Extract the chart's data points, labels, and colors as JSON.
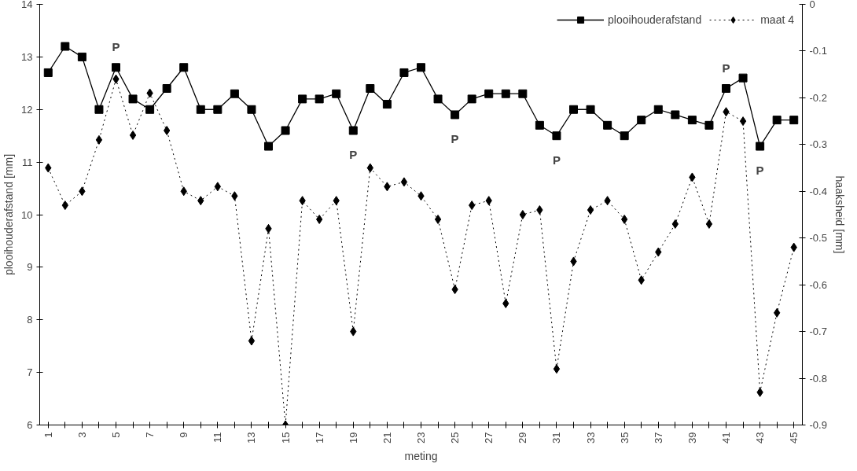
{
  "chart_data": {
    "type": "line",
    "xlabel": "meting",
    "ylabel": "plooihouderafstand [mm]",
    "y2label": "haaksheid [mm]",
    "categories": [
      "1",
      null,
      "3",
      null,
      "5",
      null,
      "7",
      null,
      "9",
      null,
      "11",
      null,
      "13",
      null,
      "15",
      null,
      "17",
      null,
      "19",
      null,
      "21",
      null,
      "23",
      null,
      "25",
      null,
      "27",
      null,
      "29",
      null,
      "31",
      null,
      "33",
      null,
      "35",
      null,
      "37",
      null,
      "39",
      null,
      "41",
      null,
      "43",
      null,
      "45"
    ],
    "series": [
      {
        "name": "plooihouderafstand",
        "color": "#000000",
        "marker": "square",
        "line_style": "solid",
        "values": [
          12.7,
          13.2,
          13.0,
          12.0,
          12.8,
          12.2,
          12.0,
          12.4,
          12.8,
          12.0,
          12.0,
          12.3,
          12.0,
          11.3,
          11.6,
          12.2,
          12.2,
          12.3,
          11.6,
          12.4,
          12.1,
          12.7,
          12.8,
          12.2,
          11.9,
          12.2,
          12.3,
          12.3,
          12.3,
          11.7,
          11.5,
          12.0,
          12.0,
          11.7,
          11.5,
          11.8,
          12.0,
          11.9,
          11.8,
          11.7,
          12.4,
          12.6,
          11.3,
          11.8,
          11.8
        ]
      },
      {
        "name": "maat 4",
        "color": "#000000",
        "marker": "diamond",
        "line_style": "dotted",
        "axis": "y2",
        "values": [
          -0.35,
          -0.43,
          -0.4,
          -0.29,
          -0.16,
          -0.28,
          -0.19,
          -0.27,
          -0.4,
          -0.42,
          -0.39,
          -0.41,
          -0.72,
          -0.48,
          -0.9,
          -0.42,
          -0.46,
          -0.42,
          -0.7,
          -0.35,
          -0.39,
          -0.38,
          -0.41,
          -0.46,
          -0.61,
          -0.43,
          -0.42,
          -0.64,
          -0.45,
          -0.44,
          -0.78,
          -0.55,
          -0.44,
          -0.42,
          -0.46,
          -0.59,
          -0.53,
          -0.47,
          -0.37,
          -0.47,
          -0.23,
          -0.25,
          -0.83,
          -0.66,
          -0.52
        ]
      }
    ],
    "ylim": [
      6,
      14
    ],
    "yticks": [
      6,
      7,
      8,
      9,
      10,
      11,
      12,
      13,
      14
    ],
    "y2lim": [
      -0.9,
      0
    ],
    "y2ticks": [
      -0.9,
      -0.8,
      -0.7,
      -0.6,
      -0.5,
      -0.4,
      -0.3,
      -0.2,
      -0.1,
      0
    ],
    "annotations": [
      {
        "text": "P",
        "x": "5",
        "y": 12.8
      },
      {
        "text": "P",
        "x": "19",
        "y": 11.6
      },
      {
        "text": "P",
        "x": "25",
        "y": 11.9
      },
      {
        "text": "P",
        "x": "31",
        "y": 11.5
      },
      {
        "text": "P",
        "x": "41",
        "y": 12.4
      },
      {
        "text": "P",
        "x": "43",
        "y": 11.3
      }
    ],
    "grid": false,
    "legend": "top right"
  }
}
